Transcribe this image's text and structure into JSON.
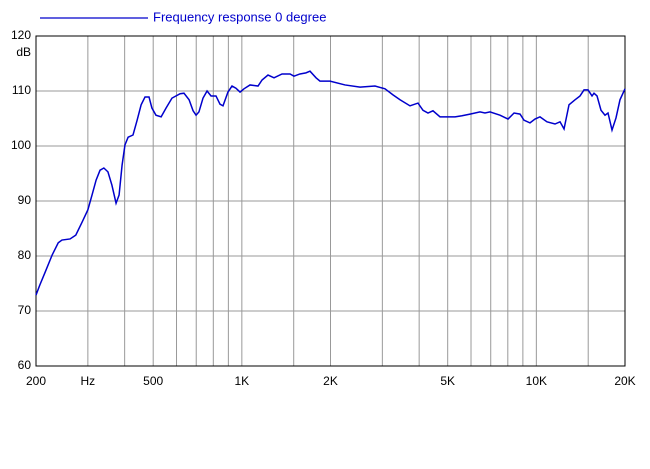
{
  "chart_data": {
    "type": "line",
    "xscale": "log",
    "grid": true,
    "legend": "top-left",
    "ylabel": "dB",
    "xlim": [
      200,
      20000
    ],
    "ylim": [
      60,
      120
    ],
    "xticks": [
      200,
      {
        "value": 300,
        "label": "Hz"
      },
      500,
      {
        "value": 1000,
        "label": "1K"
      },
      {
        "value": 2000,
        "label": "2K"
      },
      {
        "value": 5000,
        "label": "5K"
      },
      {
        "value": 10000,
        "label": "10K"
      },
      {
        "value": 20000,
        "label": "20K"
      }
    ],
    "xminor": [
      400,
      600,
      700,
      800,
      900,
      1500,
      3000,
      4000,
      6000,
      7000,
      8000,
      9000,
      15000
    ],
    "yticks": [
      60,
      70,
      80,
      90,
      100,
      110,
      120
    ],
    "x": [
      200,
      206,
      215,
      227,
      238,
      245,
      261,
      273,
      287,
      300,
      310,
      320,
      330,
      340,
      351,
      362,
      374,
      383,
      392,
      401,
      411,
      427,
      441,
      455,
      469,
      484,
      495,
      511,
      532,
      553,
      579,
      617,
      636,
      662,
      683,
      699,
      715,
      738,
      762,
      786,
      817,
      843,
      863,
      897,
      926,
      955,
      986,
      1017,
      1066,
      1135,
      1171,
      1227,
      1286,
      1369,
      1458,
      1503,
      1575,
      1651,
      1704,
      1786,
      1842,
      1992,
      2240,
      2520,
      2832,
      3062,
      3260,
      3444,
      3724,
      3964,
      4122,
      4286,
      4456,
      4708,
      5296,
      5592,
      5954,
      6436,
      6692,
      6960,
      7526,
      8014,
      8400,
      8804,
      9078,
      9516,
      9896,
      10290,
      10868,
      11572,
      12034,
      12418,
      12910,
      13530,
      14070,
      14516,
      14978,
      15454,
      15696,
      16070,
      16578,
      17106,
      17512,
      18070,
      18640,
      19232,
      20000
    ],
    "series": [
      {
        "name": "Frequency response 0 degree",
        "color": "#0000cc",
        "values": [
          72.9,
          74.7,
          77.1,
          80.2,
          82.4,
          82.9,
          83.1,
          83.8,
          86.2,
          88.4,
          91.1,
          93.8,
          95.6,
          96.0,
          95.3,
          92.9,
          89.6,
          91.1,
          96.5,
          100.2,
          101.6,
          102.0,
          104.7,
          107.5,
          108.9,
          108.9,
          106.9,
          105.6,
          105.3,
          106.9,
          108.7,
          109.5,
          109.6,
          108.4,
          106.4,
          105.6,
          106.2,
          108.7,
          110.0,
          109.1,
          109.1,
          107.6,
          107.3,
          109.8,
          110.9,
          110.5,
          109.8,
          110.4,
          111.1,
          110.9,
          112.0,
          112.9,
          112.4,
          113.1,
          113.1,
          112.7,
          113.1,
          113.3,
          113.6,
          112.4,
          111.8,
          111.8,
          111.1,
          110.7,
          110.9,
          110.4,
          109.3,
          108.4,
          107.3,
          107.8,
          106.5,
          106.0,
          106.4,
          105.3,
          105.3,
          105.5,
          105.8,
          106.2,
          106.0,
          106.2,
          105.6,
          104.9,
          106.0,
          105.8,
          104.7,
          104.2,
          104.9,
          105.3,
          104.4,
          104.0,
          104.4,
          103.1,
          107.5,
          108.4,
          109.1,
          110.2,
          110.2,
          109.1,
          109.6,
          109.1,
          106.5,
          105.6,
          106.0,
          102.9,
          105.1,
          108.4,
          110.4
        ]
      }
    ]
  }
}
